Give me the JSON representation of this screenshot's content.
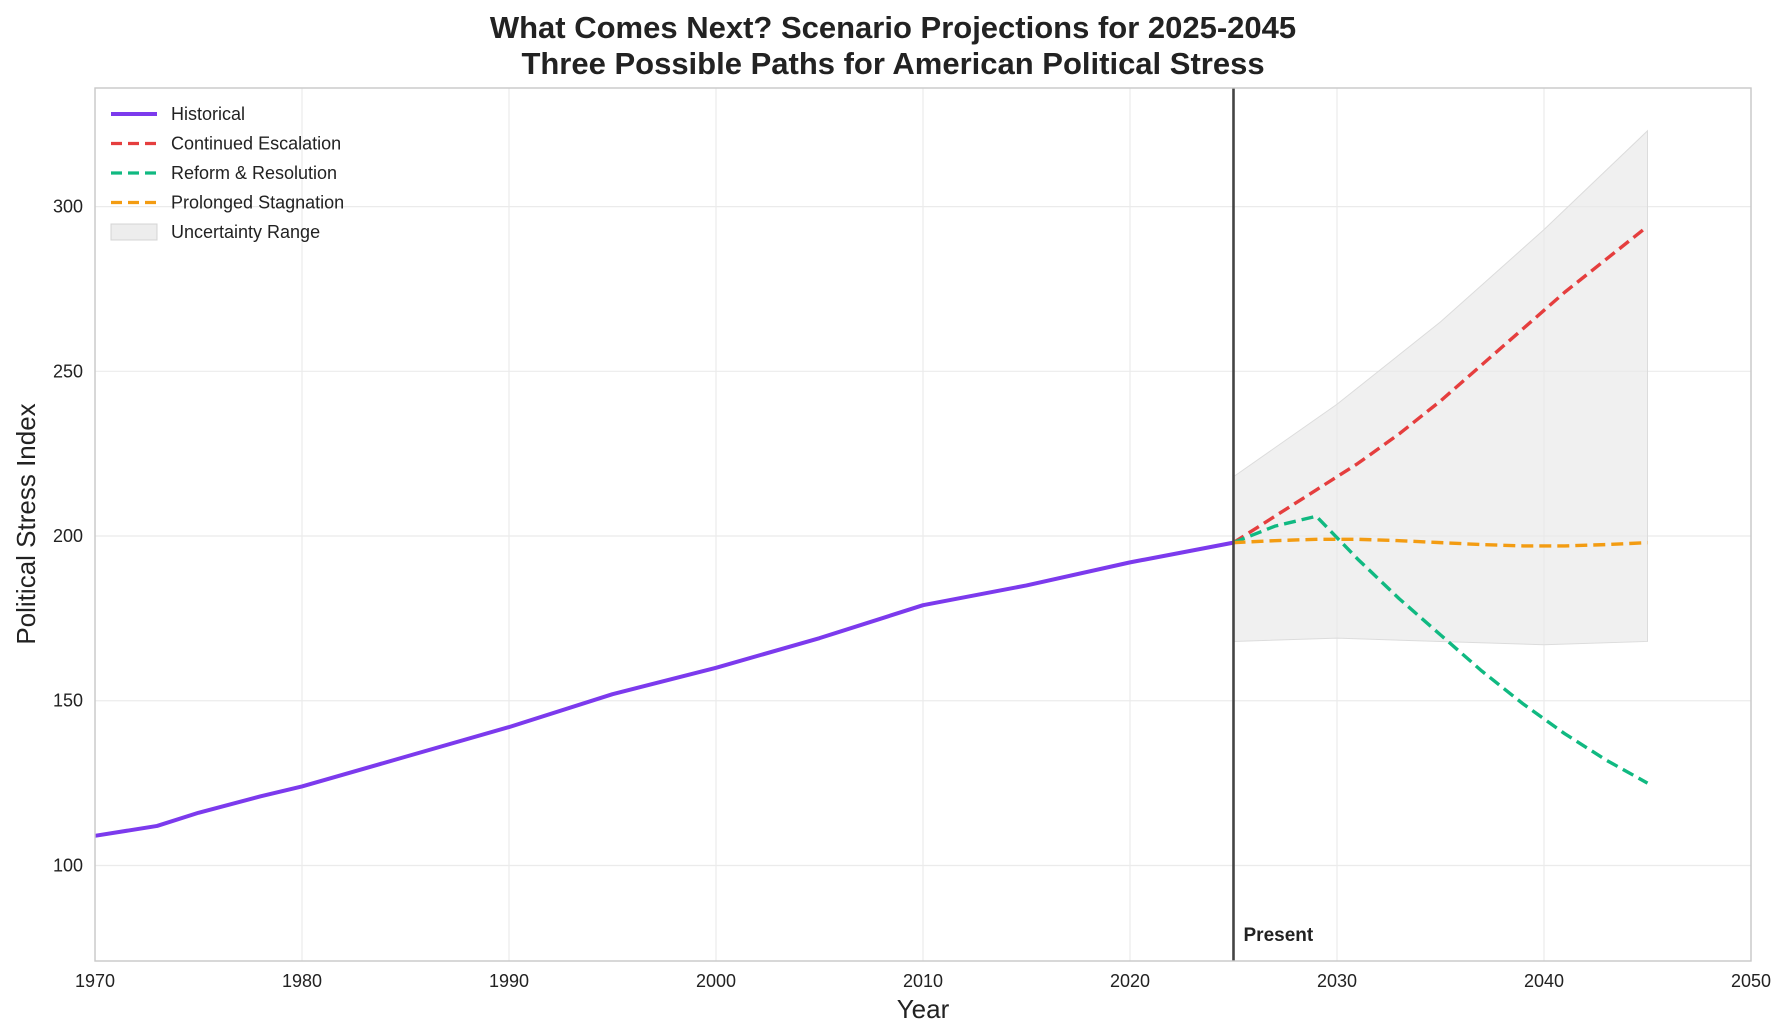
{
  "chart_data": {
    "type": "line",
    "title": "What Comes Next? Scenario Projections for 2025-2045",
    "subtitle": "Three Possible Paths for American Political Stress",
    "xlabel": "Year",
    "ylabel": "Political Stress Index",
    "xlim": [
      1970,
      2050
    ],
    "ylim": [
      71,
      336
    ],
    "xticks": [
      1970,
      1980,
      1990,
      2000,
      2010,
      2020,
      2030,
      2040,
      2050
    ],
    "yticks": [
      100,
      150,
      200,
      250,
      300
    ],
    "grid": true,
    "legend_position": "top-left",
    "series": [
      {
        "name": "Historical",
        "color": "#7c3aed",
        "style": "solid",
        "x": [
          1970,
          1973,
          1975,
          1978,
          1980,
          1985,
          1990,
          1995,
          2000,
          2005,
          2010,
          2015,
          2020,
          2025
        ],
        "y": [
          109,
          112,
          116,
          121,
          124,
          133,
          142,
          152,
          160,
          169,
          179,
          185,
          192,
          198
        ]
      },
      {
        "name": "Continued Escalation",
        "color": "#e53e3e",
        "style": "dashed",
        "x": [
          2025,
          2027,
          2029,
          2031,
          2033,
          2035,
          2037,
          2039,
          2041,
          2043,
          2045
        ],
        "y": [
          198,
          206,
          214,
          222,
          231,
          241,
          252,
          263,
          274,
          284,
          294
        ]
      },
      {
        "name": "Reform & Resolution",
        "color": "#10b981",
        "style": "dashed",
        "x": [
          2025,
          2027,
          2029,
          2031,
          2033,
          2035,
          2037,
          2039,
          2041,
          2043,
          2045
        ],
        "y": [
          198,
          203,
          206,
          193,
          181,
          170,
          159,
          149,
          140,
          132,
          125
        ]
      },
      {
        "name": "Prolonged Stagnation",
        "color": "#f39c12",
        "style": "dashed",
        "x": [
          2025,
          2027,
          2029,
          2031,
          2033,
          2035,
          2037,
          2039,
          2041,
          2043,
          2045
        ],
        "y": [
          198,
          198.6,
          199,
          199,
          198.6,
          198,
          197.4,
          197,
          197,
          197.4,
          198
        ]
      }
    ],
    "uncertainty_range": {
      "name": "Uncertainty Range",
      "color": "#e8e8e8",
      "x": [
        2025,
        2030,
        2035,
        2040,
        2045
      ],
      "lower": [
        168,
        169,
        168,
        167,
        168
      ],
      "upper": [
        218,
        240,
        265,
        293,
        323
      ]
    },
    "annotations": [
      {
        "text": "Present",
        "x": 2025,
        "type": "vertical-line"
      }
    ]
  }
}
